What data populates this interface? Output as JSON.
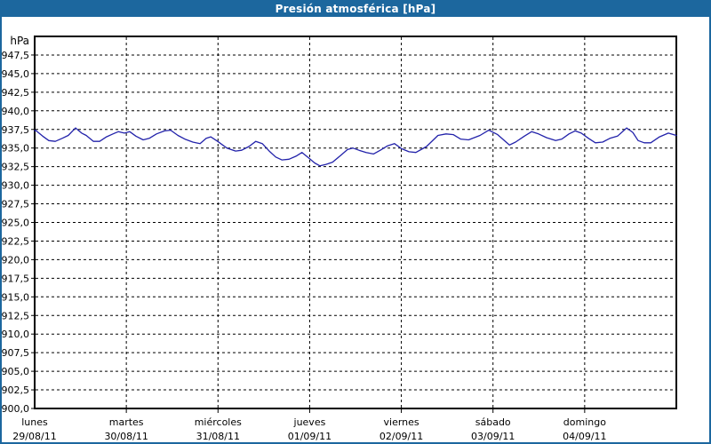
{
  "window": {
    "title": "Presión atmosférica [hPa]"
  },
  "colors": {
    "titlebar_bg": "#1c679e",
    "widget_border": "#1c679e",
    "title_text": "#ffffff",
    "plot_bg": "#ffffff",
    "grid": "#000000",
    "axis": "#000000",
    "line": "#2222aa",
    "tick_text": "#000000"
  },
  "chart_data": {
    "type": "line",
    "title": "Presión atmosférica [hPa]",
    "ylabel": "hPa",
    "unit_label": "hPa",
    "ylim": [
      900,
      950
    ],
    "ytick_step": 2.5,
    "ytick_labels": [
      "947,5",
      "945,0",
      "942,5",
      "940,0",
      "937,5",
      "935,0",
      "932,5",
      "930,0",
      "927,5",
      "925,0",
      "922,5",
      "920,0",
      "917,5",
      "915,0",
      "912,5",
      "910,0",
      "907,5",
      "905,0",
      "902,5",
      "900,0"
    ],
    "grid": "dashed",
    "legend": "none",
    "xlim_hours": [
      0,
      168
    ],
    "x_days": [
      {
        "name": "lunes",
        "date": "29/08/11"
      },
      {
        "name": "martes",
        "date": "30/08/11"
      },
      {
        "name": "miércoles",
        "date": "31/08/11"
      },
      {
        "name": "jueves",
        "date": "01/09/11"
      },
      {
        "name": "viernes",
        "date": "02/09/11"
      },
      {
        "name": "sábado",
        "date": "03/09/11"
      },
      {
        "name": "domingo",
        "date": "04/09/11"
      }
    ],
    "series": [
      {
        "name": "Presión atmosférica",
        "unit": "hPa",
        "color": "#2222aa",
        "points_hours_hpa": [
          [
            0,
            937.3
          ],
          [
            0.2,
            937.4
          ],
          [
            2.1,
            936.6
          ],
          [
            3.7,
            936.0
          ],
          [
            5.4,
            935.9
          ],
          [
            7.2,
            936.3
          ],
          [
            8.8,
            936.7
          ],
          [
            10.7,
            937.7
          ],
          [
            12.3,
            937.0
          ],
          [
            13.5,
            936.7
          ],
          [
            15.4,
            935.9
          ],
          [
            17.0,
            935.9
          ],
          [
            18.8,
            936.5
          ],
          [
            20.5,
            936.9
          ],
          [
            21.9,
            937.2
          ],
          [
            23.5,
            937.0
          ],
          [
            24.9,
            937.2
          ],
          [
            26.5,
            936.6
          ],
          [
            28.4,
            936.1
          ],
          [
            30.0,
            936.3
          ],
          [
            31.9,
            936.9
          ],
          [
            34.0,
            937.3
          ],
          [
            35.6,
            937.4
          ],
          [
            37.5,
            936.7
          ],
          [
            39.3,
            936.2
          ],
          [
            41.4,
            935.8
          ],
          [
            43.3,
            935.6
          ],
          [
            44.9,
            936.3
          ],
          [
            46.1,
            936.5
          ],
          [
            47.9,
            935.9
          ],
          [
            50.3,
            935.0
          ],
          [
            52.6,
            934.6
          ],
          [
            54.2,
            934.7
          ],
          [
            56.1,
            935.2
          ],
          [
            57.9,
            935.9
          ],
          [
            59.6,
            935.6
          ],
          [
            61.4,
            934.6
          ],
          [
            63.1,
            933.8
          ],
          [
            64.7,
            933.4
          ],
          [
            66.6,
            933.5
          ],
          [
            68.4,
            933.9
          ],
          [
            70.0,
            934.4
          ],
          [
            71.9,
            933.6
          ],
          [
            73.3,
            933.0
          ],
          [
            74.7,
            932.6
          ],
          [
            76.3,
            932.8
          ],
          [
            78.0,
            933.1
          ],
          [
            80.1,
            934.0
          ],
          [
            81.9,
            934.8
          ],
          [
            83.3,
            935.0
          ],
          [
            84.9,
            934.7
          ],
          [
            86.8,
            934.4
          ],
          [
            88.7,
            934.2
          ],
          [
            90.5,
            934.7
          ],
          [
            92.4,
            935.3
          ],
          [
            94.2,
            935.6
          ],
          [
            96.1,
            934.9
          ],
          [
            98.0,
            934.5
          ],
          [
            99.8,
            934.4
          ],
          [
            102.6,
            935.2
          ],
          [
            105.6,
            936.7
          ],
          [
            107.7,
            936.9
          ],
          [
            109.6,
            936.8
          ],
          [
            111.5,
            936.2
          ],
          [
            113.6,
            936.1
          ],
          [
            116.6,
            936.7
          ],
          [
            118.9,
            937.4
          ],
          [
            121.2,
            936.8
          ],
          [
            124.3,
            935.4
          ],
          [
            125.9,
            935.8
          ],
          [
            128.2,
            936.6
          ],
          [
            130.1,
            937.2
          ],
          [
            131.9,
            936.9
          ],
          [
            134.0,
            936.4
          ],
          [
            136.4,
            936.0
          ],
          [
            138.0,
            936.2
          ],
          [
            139.9,
            936.9
          ],
          [
            141.5,
            937.3
          ],
          [
            143.1,
            937.0
          ],
          [
            145.0,
            936.3
          ],
          [
            146.8,
            935.7
          ],
          [
            148.7,
            935.8
          ],
          [
            150.6,
            936.3
          ],
          [
            152.6,
            936.6
          ],
          [
            155.0,
            937.7
          ],
          [
            156.6,
            937.1
          ],
          [
            158.0,
            936.0
          ],
          [
            159.6,
            935.7
          ],
          [
            161.3,
            935.7
          ],
          [
            163.6,
            936.5
          ],
          [
            165.9,
            937.0
          ],
          [
            168.0,
            936.7
          ]
        ]
      }
    ]
  }
}
